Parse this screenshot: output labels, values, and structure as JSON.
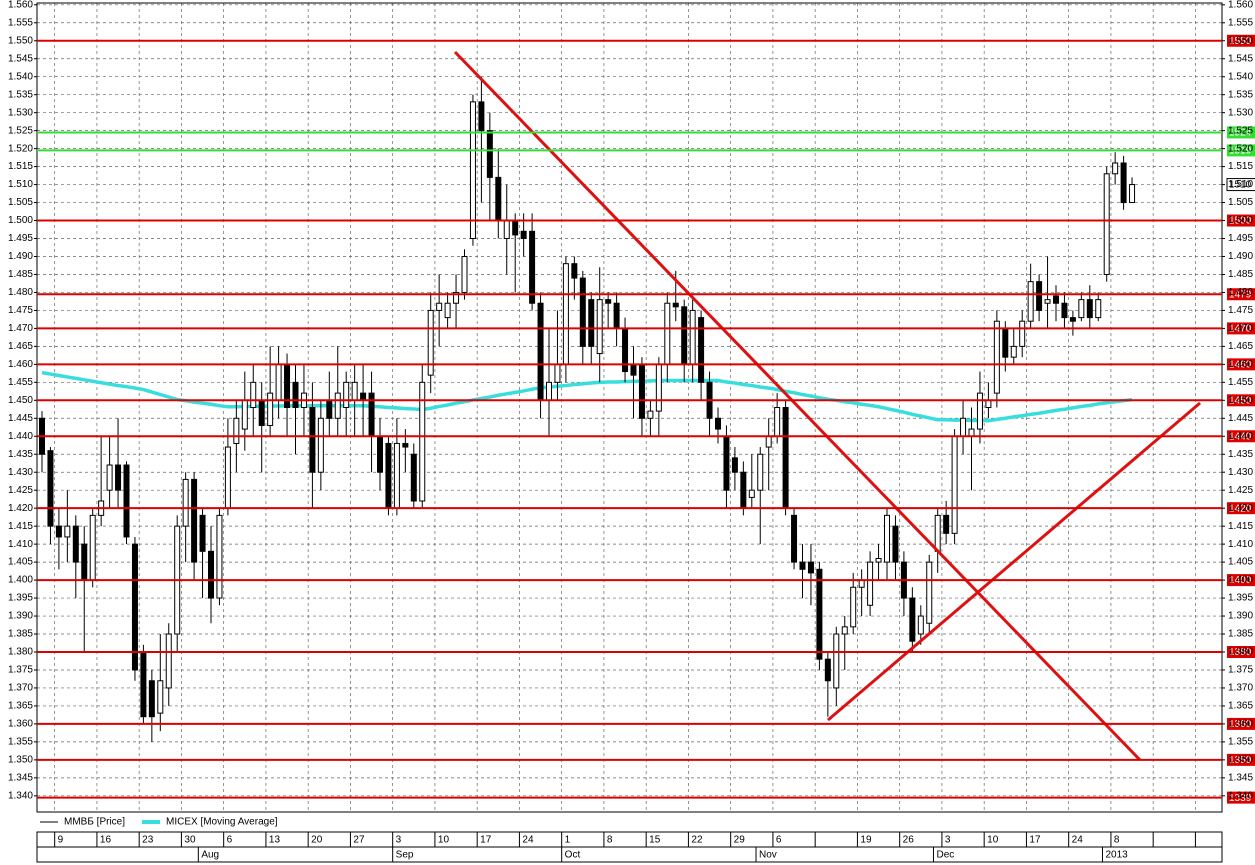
{
  "chart_data": {
    "type": "candlestick",
    "ylim": [
      1.3355,
      1.5605
    ],
    "yticks": [
      {
        "value": 1.34,
        "label": "1.340"
      },
      {
        "value": 1.345,
        "label": "1.345"
      },
      {
        "value": 1.35,
        "label": "1.350"
      },
      {
        "value": 1.355,
        "label": "1.355"
      },
      {
        "value": 1.36,
        "label": "1.360"
      },
      {
        "value": 1.365,
        "label": "1.365"
      },
      {
        "value": 1.37,
        "label": "1.370"
      },
      {
        "value": 1.375,
        "label": "1.375"
      },
      {
        "value": 1.38,
        "label": "1.380"
      },
      {
        "value": 1.385,
        "label": "1.385"
      },
      {
        "value": 1.39,
        "label": "1.390"
      },
      {
        "value": 1.395,
        "label": "1.395"
      },
      {
        "value": 1.4,
        "label": "1.400"
      },
      {
        "value": 1.405,
        "label": "1.405"
      },
      {
        "value": 1.41,
        "label": "1.410"
      },
      {
        "value": 1.415,
        "label": "1.415"
      },
      {
        "value": 1.42,
        "label": "1.420"
      },
      {
        "value": 1.425,
        "label": "1.425"
      },
      {
        "value": 1.43,
        "label": "1.430"
      },
      {
        "value": 1.435,
        "label": "1.435"
      },
      {
        "value": 1.44,
        "label": "1.440"
      },
      {
        "value": 1.445,
        "label": "1.445"
      },
      {
        "value": 1.45,
        "label": "1.450"
      },
      {
        "value": 1.455,
        "label": "1.455"
      },
      {
        "value": 1.46,
        "label": "1.460"
      },
      {
        "value": 1.465,
        "label": "1.465"
      },
      {
        "value": 1.47,
        "label": "1.470"
      },
      {
        "value": 1.475,
        "label": "1.475"
      },
      {
        "value": 1.48,
        "label": "1.480"
      },
      {
        "value": 1.485,
        "label": "1.485"
      },
      {
        "value": 1.49,
        "label": "1.490"
      },
      {
        "value": 1.495,
        "label": "1.495"
      },
      {
        "value": 1.5,
        "label": "1.500"
      },
      {
        "value": 1.505,
        "label": "1.505"
      },
      {
        "value": 1.51,
        "label": "1.510"
      },
      {
        "value": 1.515,
        "label": "1.515"
      },
      {
        "value": 1.52,
        "label": "1.520"
      },
      {
        "value": 1.525,
        "label": "1.525"
      },
      {
        "value": 1.53,
        "label": "1.530"
      },
      {
        "value": 1.535,
        "label": "1.535"
      },
      {
        "value": 1.54,
        "label": "1.540"
      },
      {
        "value": 1.545,
        "label": "1.545"
      },
      {
        "value": 1.55,
        "label": "1.550"
      },
      {
        "value": 1.555,
        "label": "1.555"
      },
      {
        "value": 1.56,
        "label": "1.560"
      }
    ],
    "grid": true,
    "categories": [
      null,
      null,
      "9",
      null,
      null,
      null,
      null,
      "16",
      null,
      null,
      null,
      null,
      "23",
      null,
      null,
      null,
      null,
      "30",
      null,
      null,
      null,
      null,
      "6",
      null,
      null,
      null,
      null,
      "13",
      null,
      null,
      null,
      null,
      "20",
      null,
      null,
      null,
      null,
      "27",
      null,
      null,
      null,
      null,
      "3",
      null,
      null,
      null,
      null,
      "10",
      null,
      null,
      null,
      null,
      "17",
      null,
      null,
      null,
      null,
      "24",
      null,
      null,
      null,
      null,
      "1",
      null,
      null,
      null,
      null,
      "8",
      null,
      null,
      null,
      null,
      "15",
      null,
      null,
      null,
      null,
      "22",
      null,
      null,
      null,
      null,
      "29",
      null,
      null,
      null,
      null,
      "6",
      null,
      null,
      null,
      null,
      null,
      null,
      null,
      null,
      null,
      "19",
      null,
      null,
      null,
      null,
      "26",
      null,
      null,
      null,
      null,
      "3",
      null,
      null,
      null,
      null,
      "10",
      null,
      null,
      null,
      null,
      "17",
      null,
      null,
      null,
      null,
      "24",
      null,
      null,
      null,
      null,
      "8",
      null,
      null
    ],
    "month_categories": [
      null,
      null,
      null,
      null,
      null,
      null,
      null,
      null,
      null,
      null,
      null,
      null,
      null,
      null,
      null,
      null,
      null,
      null,
      null,
      "Aug",
      null,
      null,
      null,
      null,
      null,
      null,
      null,
      null,
      null,
      null,
      null,
      null,
      null,
      null,
      null,
      null,
      null,
      null,
      null,
      null,
      null,
      null,
      "Sep",
      null,
      null,
      null,
      null,
      null,
      null,
      null,
      null,
      null,
      null,
      null,
      null,
      null,
      null,
      null,
      null,
      null,
      null,
      null,
      "Oct",
      null,
      null,
      null,
      null,
      null,
      null,
      null,
      null,
      null,
      null,
      null,
      null,
      null,
      null,
      null,
      null,
      null,
      null,
      null,
      null,
      null,
      null,
      "Nov",
      null,
      null,
      null,
      null,
      null,
      null,
      null,
      null,
      null,
      null,
      null,
      null,
      null,
      null,
      null,
      null,
      null,
      null,
      null,
      null,
      "Dec",
      null,
      null,
      null,
      null,
      null,
      null,
      null,
      null,
      null,
      null,
      null,
      null,
      null,
      null,
      null,
      null,
      null,
      null,
      null,
      "2013",
      null,
      null,
      null
    ],
    "series": [
      {
        "name": "ММВБ [Price]",
        "color": "#000000",
        "up_color": "#ffffff",
        "down_color": "#000000",
        "open": [
          1.445,
          1.436,
          1.415,
          1.412,
          1.415,
          1.41,
          1.4,
          1.418,
          1.425,
          1.432,
          1.432,
          1.41,
          1.38,
          1.372,
          1.363,
          1.37,
          1.385,
          1.415,
          1.428,
          1.418,
          1.408,
          1.395,
          1.42,
          1.438,
          1.442,
          1.448,
          1.45,
          1.443,
          1.45,
          1.46,
          1.455,
          1.448,
          1.448,
          1.43,
          1.45,
          1.445,
          1.448,
          1.45,
          1.452,
          1.452,
          1.44,
          1.438,
          1.42,
          1.438,
          1.435,
          1.422,
          1.457,
          1.475,
          1.473,
          1.477,
          1.48,
          1.495,
          1.533,
          1.525,
          1.512,
          1.495,
          1.5,
          1.497,
          1.497,
          1.477,
          1.45,
          1.455,
          1.46,
          1.488,
          1.484,
          1.478,
          1.463,
          1.478,
          1.477,
          1.47,
          1.46,
          1.46,
          1.445,
          1.447,
          1.46,
          1.477,
          1.476,
          1.46,
          1.473,
          1.455,
          1.445,
          1.44,
          1.434,
          1.43,
          1.423,
          1.425,
          1.437,
          1.44,
          1.448,
          1.418,
          1.405,
          1.405,
          1.403,
          1.378,
          1.37,
          1.385,
          1.387,
          1.398,
          1.393,
          1.405,
          1.405,
          1.415,
          1.405,
          1.395,
          1.385,
          1.388,
          1.408,
          1.418,
          1.413,
          1.44,
          1.44,
          1.442,
          1.448,
          1.452,
          1.47,
          1.462,
          1.465,
          1.472,
          1.483,
          1.477,
          1.479,
          1.477,
          1.473,
          1.473,
          1.478,
          1.473,
          1.485,
          1.513,
          1.516,
          1.505
        ],
        "high": [
          1.447,
          1.437,
          1.42,
          1.425,
          1.418,
          1.415,
          1.42,
          1.44,
          1.44,
          1.445,
          1.433,
          1.412,
          1.382,
          1.375,
          1.385,
          1.388,
          1.418,
          1.43,
          1.43,
          1.42,
          1.415,
          1.42,
          1.445,
          1.45,
          1.458,
          1.46,
          1.455,
          1.465,
          1.465,
          1.463,
          1.46,
          1.46,
          1.455,
          1.45,
          1.458,
          1.465,
          1.458,
          1.46,
          1.46,
          1.458,
          1.445,
          1.44,
          1.445,
          1.442,
          1.438,
          1.46,
          1.48,
          1.485,
          1.48,
          1.485,
          1.492,
          1.535,
          1.54,
          1.53,
          1.52,
          1.51,
          1.502,
          1.502,
          1.502,
          1.48,
          1.47,
          1.475,
          1.49,
          1.49,
          1.486,
          1.48,
          1.487,
          1.48,
          1.48,
          1.473,
          1.465,
          1.462,
          1.45,
          1.462,
          1.48,
          1.486,
          1.478,
          1.478,
          1.475,
          1.458,
          1.448,
          1.443,
          1.437,
          1.433,
          1.435,
          1.437,
          1.445,
          1.452,
          1.45,
          1.42,
          1.41,
          1.41,
          1.405,
          1.38,
          1.387,
          1.39,
          1.402,
          1.403,
          1.408,
          1.41,
          1.42,
          1.418,
          1.408,
          1.398,
          1.393,
          1.407,
          1.42,
          1.422,
          1.442,
          1.45,
          1.448,
          1.458,
          1.455,
          1.475,
          1.472,
          1.47,
          1.475,
          1.488,
          1.485,
          1.49,
          1.482,
          1.48,
          1.475,
          1.48,
          1.482,
          1.48,
          1.515,
          1.519,
          1.518,
          1.512
        ],
        "low": [
          1.43,
          1.41,
          1.403,
          1.405,
          1.395,
          1.38,
          1.398,
          1.415,
          1.42,
          1.42,
          1.41,
          1.372,
          1.36,
          1.355,
          1.358,
          1.365,
          1.38,
          1.405,
          1.4,
          1.395,
          1.388,
          1.393,
          1.418,
          1.43,
          1.436,
          1.44,
          1.43,
          1.44,
          1.445,
          1.44,
          1.435,
          1.44,
          1.42,
          1.425,
          1.44,
          1.44,
          1.44,
          1.44,
          1.44,
          1.43,
          1.425,
          1.418,
          1.418,
          1.43,
          1.42,
          1.42,
          1.452,
          1.465,
          1.47,
          1.47,
          1.478,
          1.493,
          1.505,
          1.5,
          1.495,
          1.485,
          1.48,
          1.49,
          1.475,
          1.445,
          1.44,
          1.45,
          1.455,
          1.478,
          1.46,
          1.46,
          1.455,
          1.47,
          1.465,
          1.455,
          1.445,
          1.44,
          1.44,
          1.44,
          1.455,
          1.472,
          1.455,
          1.455,
          1.45,
          1.44,
          1.438,
          1.42,
          1.425,
          1.418,
          1.42,
          1.41,
          1.425,
          1.438,
          1.418,
          1.403,
          1.395,
          1.393,
          1.375,
          1.362,
          1.365,
          1.375,
          1.385,
          1.39,
          1.39,
          1.4,
          1.4,
          1.4,
          1.39,
          1.38,
          1.382,
          1.385,
          1.402,
          1.41,
          1.41,
          1.435,
          1.425,
          1.438,
          1.445,
          1.448,
          1.458,
          1.46,
          1.462,
          1.47,
          1.472,
          1.47,
          1.472,
          1.47,
          1.468,
          1.472,
          1.47,
          1.472,
          1.483,
          1.51,
          1.503,
          1.505
        ],
        "close": [
          1.435,
          1.415,
          1.412,
          1.415,
          1.405,
          1.4,
          1.418,
          1.422,
          1.432,
          1.425,
          1.412,
          1.375,
          1.362,
          1.362,
          1.372,
          1.385,
          1.415,
          1.428,
          1.405,
          1.408,
          1.395,
          1.418,
          1.437,
          1.445,
          1.45,
          1.455,
          1.443,
          1.452,
          1.46,
          1.448,
          1.448,
          1.452,
          1.43,
          1.445,
          1.445,
          1.452,
          1.455,
          1.455,
          1.45,
          1.44,
          1.43,
          1.42,
          1.438,
          1.437,
          1.422,
          1.455,
          1.475,
          1.477,
          1.477,
          1.48,
          1.49,
          1.533,
          1.525,
          1.512,
          1.5,
          1.5,
          1.496,
          1.495,
          1.477,
          1.45,
          1.455,
          1.46,
          1.488,
          1.484,
          1.465,
          1.465,
          1.478,
          1.477,
          1.47,
          1.458,
          1.457,
          1.445,
          1.447,
          1.46,
          1.477,
          1.476,
          1.46,
          1.475,
          1.455,
          1.445,
          1.442,
          1.425,
          1.43,
          1.42,
          1.425,
          1.435,
          1.44,
          1.448,
          1.42,
          1.405,
          1.403,
          1.402,
          1.378,
          1.372,
          1.385,
          1.387,
          1.398,
          1.4,
          1.405,
          1.406,
          1.418,
          1.405,
          1.395,
          1.383,
          1.39,
          1.405,
          1.418,
          1.413,
          1.44,
          1.445,
          1.442,
          1.452,
          1.45,
          1.472,
          1.462,
          1.465,
          1.472,
          1.483,
          1.475,
          1.478,
          1.477,
          1.473,
          1.472,
          1.478,
          1.473,
          1.478,
          1.513,
          1.516,
          1.505,
          1.51
        ]
      },
      {
        "name": "MICEX [Moving Average]",
        "type": "line",
        "color": "#38dede",
        "values": [
          1.4577,
          1.4573,
          1.4569,
          1.4565,
          1.4561,
          1.4557,
          1.4553,
          1.4549,
          1.4545,
          1.4541,
          1.4538,
          1.4534,
          1.453,
          1.4523,
          1.4516,
          1.4509,
          1.4502,
          1.4499,
          1.4495,
          1.4492,
          1.4489,
          1.4485,
          1.4482,
          1.4482,
          1.4483,
          1.4483,
          1.4483,
          1.4484,
          1.4484,
          1.4485,
          1.4485,
          1.4485,
          1.4485,
          1.4485,
          1.4485,
          1.4485,
          1.4485,
          1.4485,
          1.4485,
          1.4483,
          1.4482,
          1.448,
          1.4479,
          1.4477,
          1.4476,
          1.4474,
          1.4478,
          1.4483,
          1.4487,
          1.4492,
          1.4496,
          1.4501,
          1.4505,
          1.4509,
          1.4514,
          1.4518,
          1.4522,
          1.4526,
          1.4531,
          1.4535,
          1.4537,
          1.4539,
          1.4541,
          1.4544,
          1.4546,
          1.4548,
          1.455,
          1.4551,
          1.4551,
          1.4552,
          1.4553,
          1.4553,
          1.4554,
          1.4555,
          1.4555,
          1.4555,
          1.4555,
          1.4555,
          1.4555,
          1.4555,
          1.4555,
          1.4551,
          1.4548,
          1.4544,
          1.4541,
          1.4537,
          1.4534,
          1.453,
          1.4525,
          1.4521,
          1.4516,
          1.4512,
          1.4507,
          1.4503,
          1.45,
          1.4496,
          1.4493,
          1.4489,
          1.4486,
          1.4482,
          1.4477,
          1.4472,
          1.4467,
          1.4461,
          1.4456,
          1.4451,
          1.4446,
          1.4446,
          1.4445,
          1.4445,
          1.4444,
          1.4444,
          1.4443,
          1.4447,
          1.445,
          1.4454,
          1.4457,
          1.4461,
          1.4464,
          1.4468,
          1.4472,
          1.4475,
          1.4479,
          1.4483,
          1.4486,
          1.449,
          1.4493,
          1.4496,
          1.4499,
          1.4502
        ]
      }
    ],
    "levels": [
      {
        "value": 1.55,
        "label": "1550",
        "color": "#dd0000"
      },
      {
        "value": 1.5245,
        "label": "1524",
        "color": "#33dd33"
      },
      {
        "value": 1.5195,
        "label": "1519",
        "color": "#33dd33"
      },
      {
        "value": 1.5,
        "label": "1500",
        "color": "#dd0000"
      },
      {
        "value": 1.4795,
        "label": "1479",
        "color": "#dd0000"
      },
      {
        "value": 1.47,
        "label": "1470",
        "color": "#dd0000"
      },
      {
        "value": 1.46,
        "label": "1460",
        "color": "#dd0000"
      },
      {
        "value": 1.45,
        "label": "1450",
        "color": "#dd0000"
      },
      {
        "value": 1.44,
        "label": "1440",
        "color": "#dd0000"
      },
      {
        "value": 1.42,
        "label": "1420",
        "color": "#dd0000"
      },
      {
        "value": 1.4,
        "label": "1400",
        "color": "#dd0000"
      },
      {
        "value": 1.38,
        "label": "1380",
        "color": "#dd0000"
      },
      {
        "value": 1.36,
        "label": "1360",
        "color": "#dd0000"
      },
      {
        "value": 1.35,
        "label": "1350",
        "color": "#dd0000"
      },
      {
        "value": 1.3395,
        "label": "1339",
        "color": "#dd0000"
      }
    ],
    "last_price": {
      "value": 1.51,
      "label": "1510"
    }
  }
}
